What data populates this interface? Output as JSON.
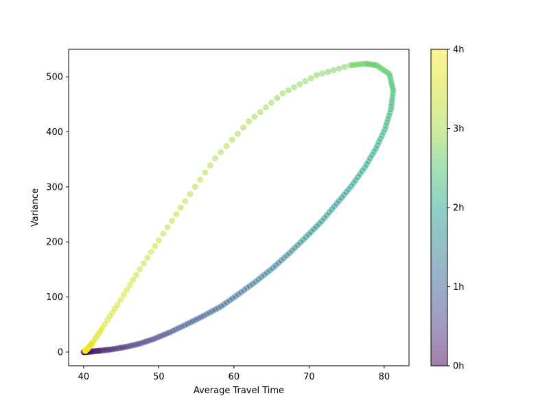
{
  "chart_data": {
    "type": "scatter",
    "title": "",
    "xlabel": "Average Travel Time",
    "ylabel": "Variance",
    "xlim": [
      38,
      83.3
    ],
    "ylim": [
      -25,
      550
    ],
    "xticks": [
      40,
      50,
      60,
      70,
      80
    ],
    "yticks": [
      0,
      100,
      200,
      300,
      400,
      500
    ],
    "xtick_labels": [
      "40",
      "50",
      "60",
      "70",
      "80"
    ],
    "ytick_labels": [
      "0",
      "100",
      "200",
      "300",
      "400",
      "500"
    ],
    "grid": false,
    "colormap": "viridis",
    "marker_alpha": 0.5,
    "colorbar": {
      "min": 0,
      "max": 4,
      "ticks": [
        0,
        1,
        2,
        3,
        4
      ],
      "tick_labels": [
        "0h",
        "1h",
        "2h",
        "3h",
        "4h"
      ]
    },
    "points": [
      {
        "t": 0.0,
        "x": 40.0,
        "y": 0
      },
      {
        "t": 0.1,
        "x": 40.4,
        "y": 0.3
      },
      {
        "t": 0.2,
        "x": 41.2,
        "y": 1.1
      },
      {
        "t": 0.3,
        "x": 42.3,
        "y": 2.6
      },
      {
        "t": 0.4,
        "x": 43.8,
        "y": 5
      },
      {
        "t": 0.5,
        "x": 45.5,
        "y": 9
      },
      {
        "t": 0.6,
        "x": 47.4,
        "y": 15
      },
      {
        "t": 0.7,
        "x": 49.4,
        "y": 24
      },
      {
        "t": 0.8,
        "x": 51.5,
        "y": 36
      },
      {
        "t": 0.9,
        "x": 53.8,
        "y": 51
      },
      {
        "t": 1.0,
        "x": 56.0,
        "y": 66
      },
      {
        "t": 1.1,
        "x": 58.3,
        "y": 83
      },
      {
        "t": 1.2,
        "x": 60.6,
        "y": 105
      },
      {
        "t": 1.3,
        "x": 62.9,
        "y": 128
      },
      {
        "t": 1.4,
        "x": 65.2,
        "y": 153
      },
      {
        "t": 1.5,
        "x": 67.4,
        "y": 180
      },
      {
        "t": 1.6,
        "x": 69.6,
        "y": 209
      },
      {
        "t": 1.7,
        "x": 71.7,
        "y": 238
      },
      {
        "t": 1.8,
        "x": 73.7,
        "y": 270
      },
      {
        "t": 1.9,
        "x": 75.6,
        "y": 301
      },
      {
        "t": 2.0,
        "x": 77.4,
        "y": 335
      },
      {
        "t": 2.1,
        "x": 78.9,
        "y": 370
      },
      {
        "t": 2.2,
        "x": 80.1,
        "y": 405
      },
      {
        "t": 2.3,
        "x": 80.9,
        "y": 441
      },
      {
        "t": 2.4,
        "x": 81.2,
        "y": 475
      },
      {
        "t": 2.5,
        "x": 80.7,
        "y": 505
      },
      {
        "t": 2.6,
        "x": 79.0,
        "y": 521
      },
      {
        "t": 2.65,
        "x": 77.5,
        "y": 524
      },
      {
        "t": 2.7,
        "x": 75.5,
        "y": 521
      },
      {
        "t": 2.8,
        "x": 71.0,
        "y": 503
      },
      {
        "t": 2.9,
        "x": 66.5,
        "y": 470
      },
      {
        "t": 3.0,
        "x": 62.0,
        "y": 419
      },
      {
        "t": 3.1,
        "x": 57.5,
        "y": 352
      },
      {
        "t": 3.2,
        "x": 53.5,
        "y": 274
      },
      {
        "t": 3.3,
        "x": 50.0,
        "y": 203
      },
      {
        "t": 3.4,
        "x": 47.0,
        "y": 140
      },
      {
        "t": 3.5,
        "x": 44.5,
        "y": 86
      },
      {
        "t": 3.6,
        "x": 42.5,
        "y": 44
      },
      {
        "t": 3.7,
        "x": 41.2,
        "y": 17
      },
      {
        "t": 3.8,
        "x": 40.6,
        "y": 7
      },
      {
        "t": 3.9,
        "x": 40.3,
        "y": 3
      },
      {
        "t": 4.0,
        "x": 40.2,
        "y": 2
      }
    ]
  }
}
